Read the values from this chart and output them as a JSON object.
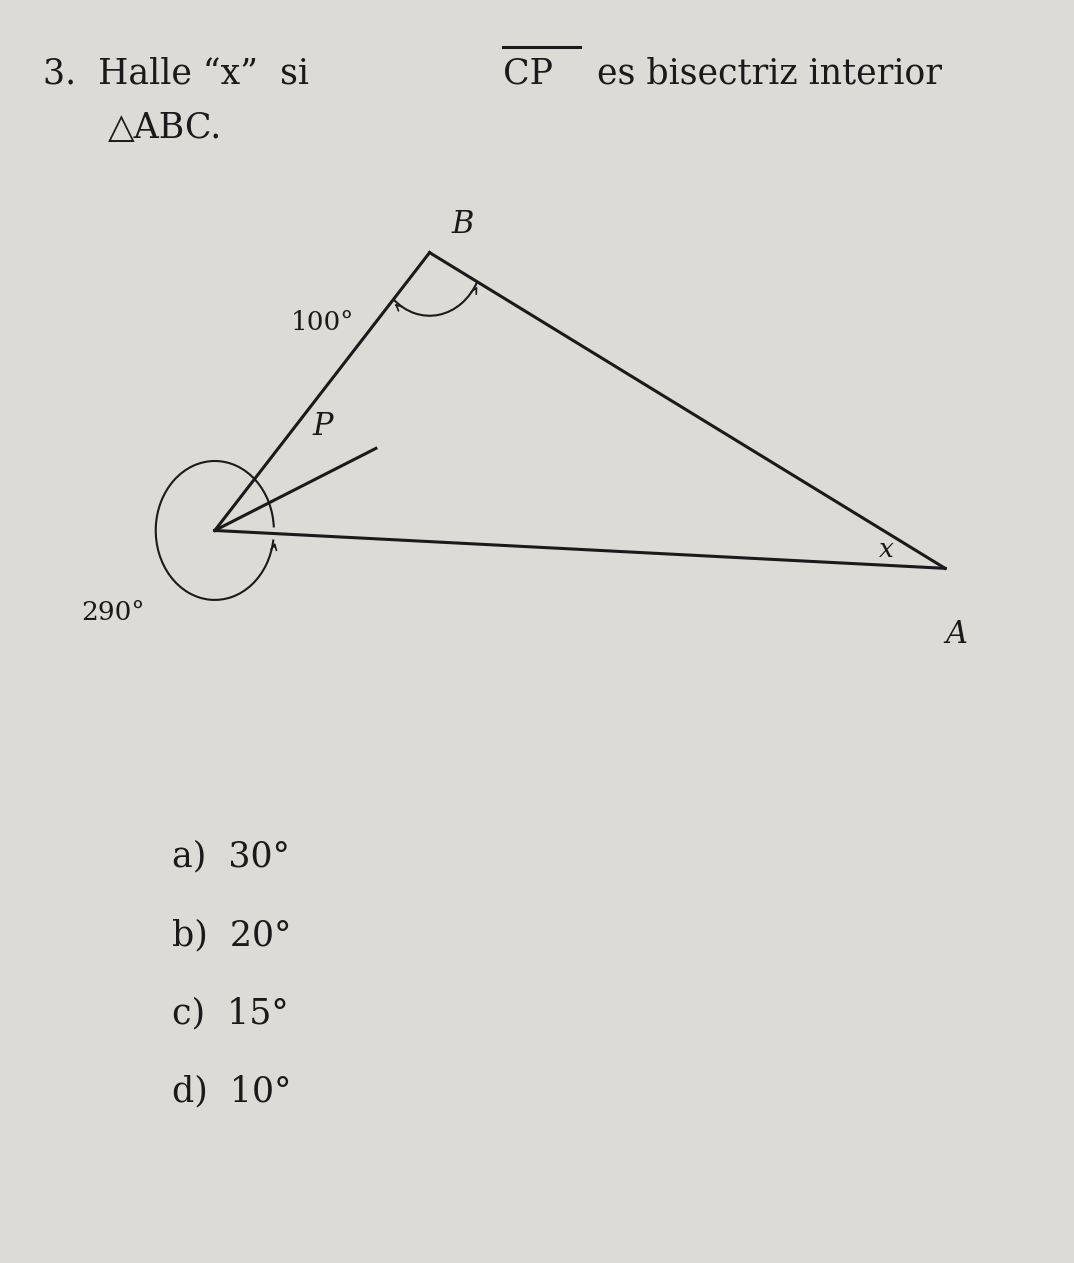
{
  "bg_color": "#dddbd6",
  "text_color": "#1a1a1a",
  "choices": [
    "a)  30°",
    "b)  20°",
    "c)  15°",
    "d)  10°"
  ],
  "angle_B_label": "100°",
  "angle_C_label": "290°",
  "angle_x_label": "x",
  "label_B": "B",
  "label_P": "P",
  "label_A": "A",
  "C": [
    0.2,
    0.58
  ],
  "B": [
    0.4,
    0.8
  ],
  "A_pt": [
    0.88,
    0.55
  ],
  "P": [
    0.35,
    0.645
  ]
}
